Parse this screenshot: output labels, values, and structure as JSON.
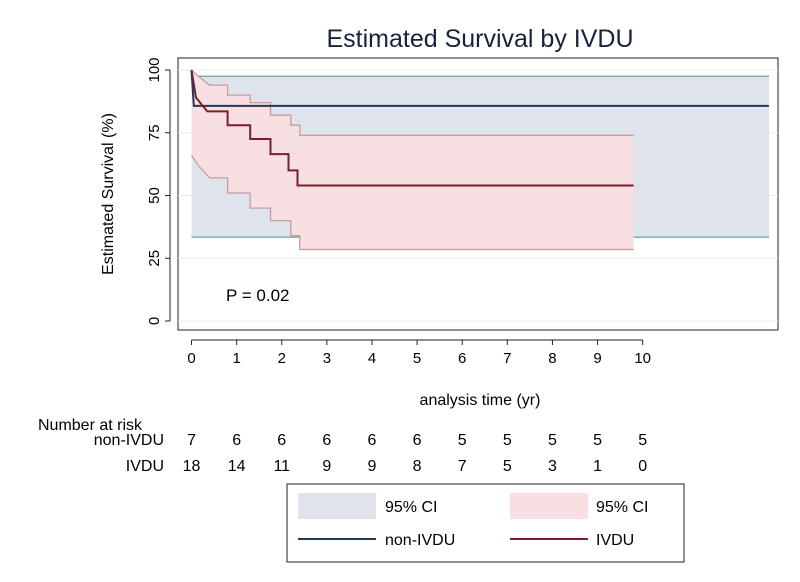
{
  "chart_data": {
    "type": "line",
    "subtype": "kaplan-meier",
    "title": "Estimated Survival by IVDU",
    "xlabel": "analysis time (yr)",
    "ylabel": "Estimated Survival (%)",
    "xlim": [
      -0.3,
      13
    ],
    "ylim": [
      0,
      100
    ],
    "x_ticks": [
      "0",
      "1",
      "2",
      "3",
      "4",
      "5",
      "6",
      "7",
      "8",
      "9",
      "10"
    ],
    "y_ticks": [
      "0",
      "25",
      "50",
      "75",
      "100"
    ],
    "grid": true,
    "annotation": "P = 0.02",
    "series": [
      {
        "name": "non-IVDU",
        "color": "#1f3a5a",
        "ci_color": "#dfe4ec",
        "ci_edge": "#7aa89e",
        "survival": [
          [
            0,
            100
          ],
          [
            0.05,
            85.7
          ],
          [
            12.8,
            85.7
          ]
        ],
        "ci_upper": [
          [
            0,
            97.5
          ],
          [
            12.8,
            97.5
          ]
        ],
        "ci_lower": [
          [
            0,
            33.4
          ],
          [
            12.8,
            33.4
          ]
        ]
      },
      {
        "name": "IVDU",
        "color": "#7a1f30",
        "ci_color": "#f7dfe2",
        "ci_edge": "#c89aa0",
        "survival": [
          [
            0,
            100
          ],
          [
            0.1,
            89
          ],
          [
            0.35,
            83.5
          ],
          [
            0.8,
            83.5
          ],
          [
            0.8,
            78
          ],
          [
            1.3,
            78
          ],
          [
            1.3,
            72.5
          ],
          [
            1.75,
            72.5
          ],
          [
            1.75,
            66.5
          ],
          [
            2.15,
            66.5
          ],
          [
            2.15,
            60
          ],
          [
            2.35,
            60
          ],
          [
            2.35,
            54
          ],
          [
            9.8,
            54
          ]
        ],
        "ci_upper": [
          [
            0,
            100
          ],
          [
            0.15,
            97.5
          ],
          [
            0.4,
            94
          ],
          [
            0.8,
            94
          ],
          [
            0.8,
            90
          ],
          [
            1.3,
            90
          ],
          [
            1.3,
            87
          ],
          [
            1.75,
            87
          ],
          [
            1.75,
            82
          ],
          [
            2.2,
            82
          ],
          [
            2.2,
            78
          ],
          [
            2.4,
            78
          ],
          [
            2.4,
            74
          ],
          [
            9.8,
            74
          ]
        ],
        "ci_lower": [
          [
            0,
            66
          ],
          [
            0.15,
            62
          ],
          [
            0.4,
            57
          ],
          [
            0.8,
            57
          ],
          [
            0.8,
            51
          ],
          [
            1.3,
            51
          ],
          [
            1.3,
            45
          ],
          [
            1.75,
            45
          ],
          [
            1.75,
            40
          ],
          [
            2.2,
            40
          ],
          [
            2.2,
            34
          ],
          [
            2.4,
            34
          ],
          [
            2.4,
            28.5
          ],
          [
            9.8,
            28.5
          ]
        ]
      }
    ],
    "risk_table": {
      "title": "Number at risk",
      "rows": [
        {
          "label": "non-IVDU",
          "values": [
            "7",
            "6",
            "6",
            "6",
            "6",
            "6",
            "5",
            "5",
            "5",
            "5",
            "5"
          ]
        },
        {
          "label": "IVDU",
          "values": [
            "18",
            "14",
            "11",
            "9",
            "9",
            "8",
            "7",
            "5",
            "3",
            "1",
            "0"
          ]
        }
      ]
    },
    "legend": {
      "placement": "bottom",
      "entries": [
        {
          "label": "95% CI",
          "kind": "ci",
          "series": "non-IVDU"
        },
        {
          "label": "95% CI",
          "kind": "ci",
          "series": "IVDU"
        },
        {
          "label": "non-IVDU",
          "kind": "line",
          "series": "non-IVDU"
        },
        {
          "label": "IVDU",
          "kind": "line",
          "series": "IVDU"
        }
      ]
    }
  }
}
